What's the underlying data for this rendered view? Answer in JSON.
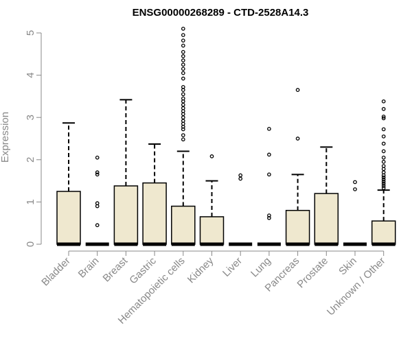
{
  "chart_data": {
    "type": "boxplot",
    "title": "ENSG00000268289 - CTD-2528A14.3",
    "xlabel": "",
    "ylabel": "Expression",
    "ylim": [
      0,
      5.15
    ],
    "yticks": [
      0,
      1,
      2,
      3,
      4,
      5
    ],
    "ytick_labels": [
      "0",
      "1",
      "2",
      "3",
      "4",
      "5"
    ],
    "colors": {
      "box_fill": "#efe8cf",
      "stroke": "#000000",
      "axis": "#888888"
    },
    "categories": [
      "Bladder",
      "Brain",
      "Breast",
      "Gastric",
      "Hematopoietic cells",
      "Kidney",
      "Liver",
      "Lung",
      "Pancreas",
      "Prostate",
      "Skin",
      "Unknown / Other"
    ],
    "boxes": [
      {
        "label": "Bladder",
        "q1": 0,
        "median": 0,
        "q3": 1.25,
        "whisker_low": 0,
        "whisker_high": 2.87,
        "outliers": []
      },
      {
        "label": "Brain",
        "q1": 0,
        "median": 0,
        "q3": 0,
        "whisker_low": 0,
        "whisker_high": 0,
        "outliers": [
          0.45,
          0.9,
          0.97,
          1.65,
          1.7,
          2.05
        ]
      },
      {
        "label": "Breast",
        "q1": 0,
        "median": 0,
        "q3": 1.38,
        "whisker_low": 0,
        "whisker_high": 3.42,
        "outliers": []
      },
      {
        "label": "Gastric",
        "q1": 0,
        "median": 0,
        "q3": 1.45,
        "whisker_low": 0,
        "whisker_high": 2.37,
        "outliers": []
      },
      {
        "label": "Hematopoietic cells",
        "q1": 0,
        "median": 0,
        "q3": 0.9,
        "whisker_low": 0,
        "whisker_high": 2.2,
        "outliers": [
          2.48,
          2.58,
          2.72,
          2.78,
          2.85,
          2.92,
          3.0,
          3.08,
          3.15,
          3.22,
          3.3,
          3.38,
          3.45,
          3.55,
          3.65,
          3.72,
          3.92,
          4.05,
          4.15,
          4.25,
          4.35,
          4.45,
          4.55,
          4.7,
          4.82,
          4.95,
          5.1
        ]
      },
      {
        "label": "Kidney",
        "q1": 0,
        "median": 0,
        "q3": 0.65,
        "whisker_low": 0,
        "whisker_high": 1.5,
        "outliers": [
          2.08
        ]
      },
      {
        "label": "Liver",
        "q1": 0,
        "median": 0,
        "q3": 0,
        "whisker_low": 0,
        "whisker_high": 0,
        "outliers": [
          1.55,
          1.63
        ]
      },
      {
        "label": "Lung",
        "q1": 0,
        "median": 0,
        "q3": 0,
        "whisker_low": 0,
        "whisker_high": 0,
        "outliers": [
          0.62,
          0.68,
          1.65,
          2.12,
          2.73
        ]
      },
      {
        "label": "Pancreas",
        "q1": 0,
        "median": 0,
        "q3": 0.8,
        "whisker_low": 0,
        "whisker_high": 1.65,
        "outliers": [
          2.5,
          3.65
        ]
      },
      {
        "label": "Prostate",
        "q1": 0,
        "median": 0,
        "q3": 1.2,
        "whisker_low": 0,
        "whisker_high": 2.3,
        "outliers": []
      },
      {
        "label": "Skin",
        "q1": 0,
        "median": 0,
        "q3": 0,
        "whisker_low": 0,
        "whisker_high": 0,
        "outliers": [
          1.3,
          1.47
        ]
      },
      {
        "label": "Unknown / Other",
        "q1": 0,
        "median": 0,
        "q3": 0.55,
        "whisker_low": 0,
        "whisker_high": 1.28,
        "outliers": [
          1.33,
          1.38,
          1.43,
          1.48,
          1.53,
          1.58,
          1.63,
          1.7,
          1.78,
          1.85,
          1.95,
          2.05,
          2.2,
          2.38,
          2.55,
          2.72,
          2.98,
          3.02,
          3.2,
          3.38
        ]
      }
    ]
  }
}
